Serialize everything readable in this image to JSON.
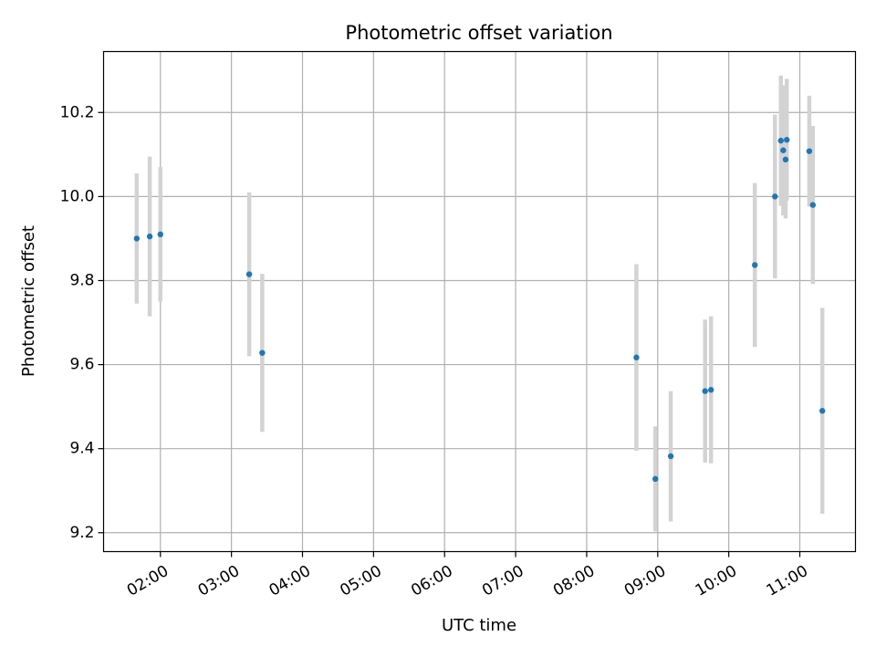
{
  "chart_data": {
    "type": "scatter",
    "title": "Photometric offset variation",
    "xlabel": "UTC time",
    "ylabel": "Photometric offset",
    "x_type": "time",
    "xlim": [
      "01:12",
      "11:47"
    ],
    "ylim": [
      9.155,
      10.345
    ],
    "x_ticks": [
      "02:00",
      "03:00",
      "04:00",
      "05:00",
      "06:00",
      "07:00",
      "08:00",
      "09:00",
      "10:00",
      "11:00"
    ],
    "y_ticks": [
      9.2,
      9.4,
      9.6,
      9.8,
      10.0,
      10.2
    ],
    "y_tick_labels": [
      "9.2",
      "9.4",
      "9.6",
      "9.8",
      "10.0",
      "10.2"
    ],
    "grid": true,
    "point_color": "#1f77b4",
    "errorbar_color": "#d3d3d3",
    "points": [
      {
        "x": "01:40",
        "y": 9.9,
        "err": 0.155
      },
      {
        "x": "01:51",
        "y": 9.905,
        "err": 0.19
      },
      {
        "x": "02:00",
        "y": 9.91,
        "err": 0.16
      },
      {
        "x": "03:15",
        "y": 9.815,
        "err": 0.195
      },
      {
        "x": "03:26",
        "y": 9.628,
        "err": 0.188
      },
      {
        "x": "08:42",
        "y": 9.617,
        "err": 0.222
      },
      {
        "x": "08:58",
        "y": 9.328,
        "err": 0.125
      },
      {
        "x": "09:11",
        "y": 9.382,
        "err": 0.155
      },
      {
        "x": "09:40",
        "y": 9.537,
        "err": 0.17
      },
      {
        "x": "09:45",
        "y": 9.54,
        "err": 0.175
      },
      {
        "x": "10:22",
        "y": 9.837,
        "err": 0.195
      },
      {
        "x": "10:39",
        "y": 10.0,
        "err": 0.195
      },
      {
        "x": "10:44",
        "y": 10.133,
        "err": 0.155
      },
      {
        "x": "10:46",
        "y": 10.11,
        "err": 0.155
      },
      {
        "x": "10:48",
        "y": 10.088,
        "err": 0.14
      },
      {
        "x": "10:49",
        "y": 10.135,
        "err": 0.145
      },
      {
        "x": "11:08",
        "y": 10.108,
        "err": 0.132
      },
      {
        "x": "11:11",
        "y": 9.98,
        "err": 0.188
      },
      {
        "x": "11:19",
        "y": 9.49,
        "err": 0.245
      }
    ]
  }
}
